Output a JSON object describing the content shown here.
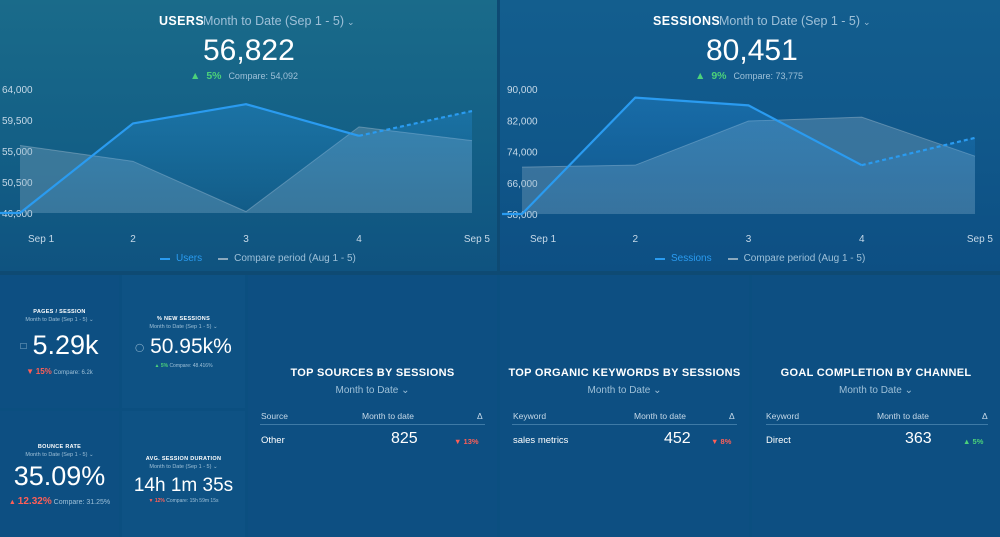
{
  "colors": {
    "accent": "#2a9bf0",
    "up": "#4cd17a",
    "down": "#ff5f57",
    "compare_area": "#7f9fb5"
  },
  "users": {
    "title": "USERS",
    "period": "Month to Date (Sep 1 - 5)",
    "value": "56,822",
    "delta_pct": "5%",
    "compare": "Compare: 54,092",
    "legend_current": "Users",
    "legend_compare": "Compare period (Aug 1 - 5)"
  },
  "sessions": {
    "title": "SESSIONS",
    "period": "Month to Date (Sep 1 - 5)",
    "value": "80,451",
    "delta_pct": "9%",
    "compare": "Compare: 73,775",
    "legend_current": "Sessions",
    "legend_compare": "Compare period (Aug 1 - 5)"
  },
  "chart_data": [
    {
      "type": "line",
      "title": "Users",
      "categories": [
        "Sep 1",
        "2",
        "3",
        "4",
        "Sep 5"
      ],
      "y_ticks": [
        "64,000",
        "59,500",
        "55,000",
        "50,500",
        "46,000"
      ],
      "ylim": [
        46000,
        64000
      ],
      "series": [
        {
          "name": "Users",
          "values": [
            46000,
            59000,
            61800,
            57200,
            60800
          ],
          "projected_last": true
        },
        {
          "name": "Compare period (Aug 1 - 5)",
          "values": [
            55800,
            53500,
            46200,
            58500,
            56500
          ],
          "style": "area"
        }
      ]
    },
    {
      "type": "line",
      "title": "Sessions",
      "categories": [
        "Sep 1",
        "2",
        "3",
        "4",
        "Sep 5"
      ],
      "y_ticks": [
        "90,000",
        "82,000",
        "74,000",
        "66,000",
        "58,000"
      ],
      "ylim": [
        58000,
        90000
      ],
      "series": [
        {
          "name": "Sessions",
          "values": [
            58000,
            87800,
            85800,
            70500,
            77500
          ],
          "projected_last": true
        },
        {
          "name": "Compare period (Aug 1 - 5)",
          "values": [
            70000,
            70500,
            81800,
            82800,
            72800
          ],
          "style": "area"
        }
      ]
    }
  ],
  "kpis": {
    "pages_session": {
      "title": "PAGES / SESSION",
      "period": "Month to Date (Sep 1 - 5)",
      "value": "5.29k",
      "delta": "15%",
      "compare": "Compare: 6.2k"
    },
    "new_sessions": {
      "title": "% NEW SESSIONS",
      "period": "Month to Date (Sep 1 - 5)",
      "value": "50.95k%",
      "delta": "5%",
      "compare": "Compare: 48.416%"
    },
    "bounce_rate": {
      "title": "BOUNCE RATE",
      "period": "Month to Date (Sep 1 - 5)",
      "value": "35.09%",
      "delta": "12.32%",
      "compare": "Compare: 31.25%"
    },
    "avg_duration": {
      "title": "AVG. SESSION DURATION",
      "period": "Month to Date (Sep 1 - 5)",
      "value": "14h 1m 35s",
      "delta": "12%",
      "compare": "Compare: 15h 59m 15s"
    }
  },
  "tables": {
    "sources": {
      "title": "TOP SOURCES BY SESSIONS",
      "period": "Month to Date",
      "col1": "Source",
      "col2": "Month to date",
      "col3": "Δ",
      "rows": [
        {
          "label": "Other",
          "value": "825",
          "delta": "13%"
        }
      ]
    },
    "keywords": {
      "title": "TOP ORGANIC KEYWORDS BY SESSIONS",
      "period": "Month to Date",
      "col1": "Keyword",
      "col2": "Month to date",
      "col3": "Δ",
      "rows": [
        {
          "label": "sales metrics",
          "value": "452",
          "delta": "8%"
        }
      ]
    },
    "goals": {
      "title": "GOAL COMPLETION BY CHANNEL",
      "period": "Month to Date",
      "col1": "Keyword",
      "col2": "Month to date",
      "col3": "Δ",
      "rows": [
        {
          "label": "Direct",
          "value": "363",
          "delta": "5%"
        }
      ]
    }
  }
}
